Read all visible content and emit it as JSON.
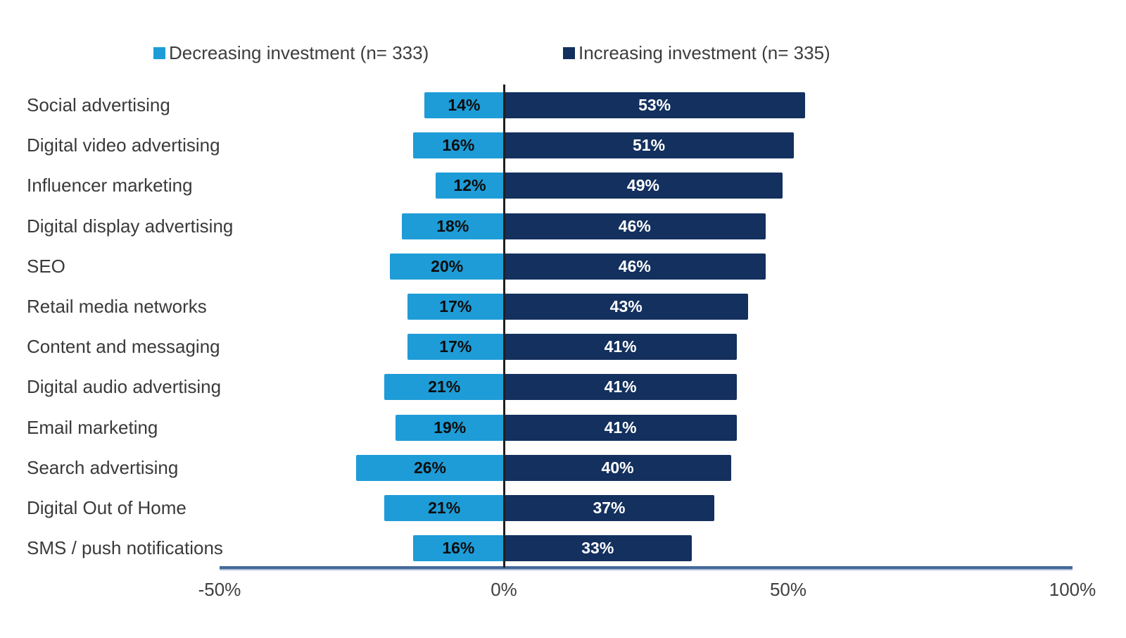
{
  "chart_data": {
    "type": "bar",
    "variant": "diverging-horizontal",
    "title": "",
    "categories": [
      "Social advertising",
      "Digital video advertising",
      "Influencer marketing",
      "Digital display advertising",
      "SEO",
      "Retail media networks",
      "Content and messaging",
      "Digital audio advertising",
      "Email marketing",
      "Search advertising",
      "Digital Out of Home",
      "SMS / push notifications"
    ],
    "series": [
      {
        "name": "Decreasing investment (n= 333)",
        "direction": "left",
        "color": "#1E9CD7",
        "label_color": "#0d0d0d",
        "values": [
          14,
          16,
          12,
          18,
          20,
          17,
          17,
          21,
          19,
          26,
          21,
          16
        ]
      },
      {
        "name": "Increasing investment (n= 335)",
        "direction": "right",
        "color": "#13305E",
        "label_color": "#ffffff",
        "values": [
          53,
          51,
          49,
          46,
          46,
          43,
          41,
          41,
          41,
          40,
          37,
          33
        ]
      }
    ],
    "value_suffix": "%",
    "xlim": [
      -50,
      100
    ],
    "x_ticks": [
      "-50%",
      "0%",
      "50%",
      "100%"
    ],
    "zero_position_pct": 33.3333,
    "legend_position": "top",
    "grid": false,
    "colors": {
      "axis_line_dark": "#44689B",
      "axis_line_light": "#AEBFD6",
      "zero_line": "#1f1f1f",
      "text": "#3a3a3a"
    }
  }
}
